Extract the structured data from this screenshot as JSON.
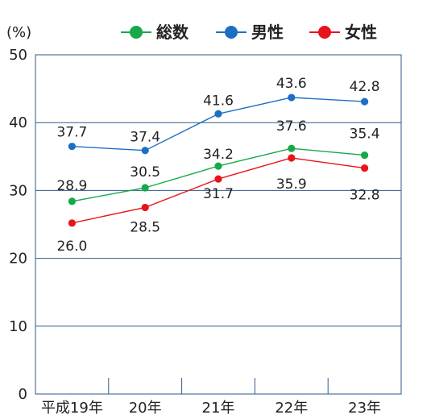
{
  "chart_data": {
    "type": "line",
    "ylabel": "(%)",
    "ylim": [
      0,
      50
    ],
    "yticks": [
      0,
      10,
      20,
      30,
      40,
      50
    ],
    "categories": [
      "平成19年",
      "20年",
      "21年",
      "22年",
      "23年"
    ],
    "grid": "horizontal",
    "legend_position": "top",
    "series": [
      {
        "name": "総数",
        "color": "#17a84a",
        "values": [
          28.9,
          30.5,
          34.2,
          37.6,
          35.4
        ]
      },
      {
        "name": "男性",
        "color": "#1e6fc4",
        "values": [
          37.7,
          37.4,
          41.6,
          43.6,
          42.8
        ]
      },
      {
        "name": "女性",
        "color": "#e8141b",
        "values": [
          26.0,
          28.5,
          31.7,
          35.9,
          32.8
        ]
      }
    ],
    "point_values": [
      [
        28.4,
        30.4,
        33.6,
        36.2,
        35.2
      ],
      [
        36.5,
        35.9,
        41.3,
        43.7,
        43.1
      ],
      [
        25.2,
        27.5,
        31.7,
        34.8,
        33.3
      ]
    ],
    "data_labels": [
      [
        "28.9",
        "30.5",
        "34.2",
        "37.6",
        "35.4"
      ],
      [
        "37.7",
        "37.4",
        "41.6",
        "43.6",
        "42.8"
      ],
      [
        "26.0",
        "28.5",
        "31.7",
        "35.9",
        "32.8"
      ]
    ]
  }
}
